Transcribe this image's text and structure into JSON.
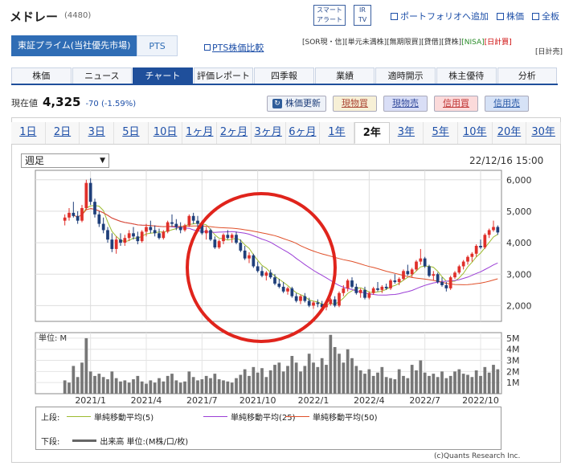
{
  "header": {
    "company_name": "メドレー",
    "code": "(4480)",
    "smart_alert": "スマート\nアラート",
    "ir_tv": "IR\nTV",
    "links": [
      "ポートフォリオへ追加",
      "株価",
      "全板"
    ]
  },
  "market": {
    "main_label": "東証プライム(当社優先市場)",
    "pts_label": "PTS",
    "pts_compare": "PTS株価比較",
    "tags_line1": [
      "[SOR現・信]",
      "[単元未満株]",
      "[無期限買]",
      "[貸借]",
      "[貸株]",
      "[NISA]",
      "[日計買]"
    ],
    "tags_line2": [
      "[日計売]"
    ]
  },
  "nav": {
    "tabs": [
      "株価",
      "ニュース",
      "チャート",
      "評価レポート",
      "四季報",
      "業績",
      "適時開示",
      "株主優待",
      "分析"
    ],
    "active_index": 2
  },
  "price": {
    "label": "現在値",
    "value": "4,325",
    "change": "-70 (-1.59%)"
  },
  "buttons": {
    "update": "株価更新",
    "buy": "現物買",
    "sell": "現物売",
    "credit_buy": "信用買",
    "credit_sell": "信用売"
  },
  "periods": {
    "items": [
      "1日",
      "2日",
      "3日",
      "5日",
      "10日",
      "1ヶ月",
      "2ヶ月",
      "3ヶ月",
      "6ヶ月",
      "1年",
      "2年",
      "3年",
      "5年",
      "10年",
      "20年",
      "30年"
    ],
    "active_index": 10
  },
  "chart_controls": {
    "interval_select": "週足",
    "timestamp": "22/12/16 15:00"
  },
  "chart_data": {
    "type": "candlestick",
    "x_ticks": [
      "2021/1",
      "2021/4",
      "2021/7",
      "2021/10",
      "2022/1",
      "2022/4",
      "2022/7",
      "2022/10"
    ],
    "price_axis": {
      "ticks": [
        "6,000",
        "5,000",
        "4,000",
        "3,000",
        "2,000"
      ],
      "range": [
        1500,
        6300
      ]
    },
    "volume_axis": {
      "unit_label": "単位: M",
      "ticks": [
        "5M",
        "4M",
        "3M",
        "2M",
        "1M"
      ],
      "range": [
        0,
        5.5
      ]
    },
    "weeks": 102,
    "ohlc": [
      [
        4700,
        4900,
        4550,
        4800
      ],
      [
        4800,
        5100,
        4700,
        4950
      ],
      [
        4950,
        5300,
        4800,
        4850
      ],
      [
        4850,
        5000,
        4600,
        4700
      ],
      [
        4700,
        5200,
        4650,
        5100
      ],
      [
        5100,
        6000,
        5050,
        5900
      ],
      [
        5900,
        6050,
        5200,
        5300
      ],
      [
        5300,
        5400,
        4800,
        4900
      ],
      [
        4900,
        5000,
        4500,
        4600
      ],
      [
        4600,
        4800,
        4300,
        4400
      ],
      [
        4400,
        4500,
        4000,
        4100
      ],
      [
        4100,
        4300,
        3700,
        3800
      ],
      [
        3800,
        4200,
        3650,
        4100
      ],
      [
        4100,
        4300,
        3900,
        4000
      ],
      [
        4000,
        4250,
        3900,
        4150
      ],
      [
        4150,
        4400,
        4050,
        4300
      ],
      [
        4300,
        4500,
        4100,
        4200
      ],
      [
        4200,
        4350,
        3950,
        4050
      ],
      [
        4050,
        4400,
        4000,
        4350
      ],
      [
        4350,
        4600,
        4200,
        4500
      ],
      [
        4500,
        4700,
        4300,
        4400
      ],
      [
        4400,
        4550,
        4200,
        4300
      ],
      [
        4300,
        4450,
        4100,
        4150
      ],
      [
        4150,
        4400,
        4100,
        4350
      ],
      [
        4350,
        4700,
        4300,
        4650
      ],
      [
        4650,
        4900,
        4500,
        4600
      ],
      [
        4600,
        4750,
        4400,
        4500
      ],
      [
        4500,
        4650,
        4300,
        4400
      ],
      [
        4400,
        4600,
        4350,
        4550
      ],
      [
        4550,
        4900,
        4500,
        4850
      ],
      [
        4850,
        4950,
        4600,
        4700
      ],
      [
        4700,
        4850,
        4500,
        4600
      ],
      [
        4600,
        4700,
        4250,
        4300
      ],
      [
        4300,
        4500,
        4100,
        4400
      ],
      [
        4400,
        4450,
        4050,
        4100
      ],
      [
        4100,
        4200,
        3800,
        3850
      ],
      [
        3850,
        4100,
        3800,
        4050
      ],
      [
        4050,
        4300,
        3950,
        4250
      ],
      [
        4250,
        4400,
        4100,
        4150
      ],
      [
        4150,
        4300,
        4000,
        4250
      ],
      [
        4250,
        4350,
        3950,
        4000
      ],
      [
        4000,
        4100,
        3700,
        3750
      ],
      [
        3750,
        3900,
        3450,
        3500
      ],
      [
        3500,
        3700,
        3350,
        3600
      ],
      [
        3600,
        3650,
        3200,
        3250
      ],
      [
        3250,
        3400,
        3050,
        3100
      ],
      [
        3100,
        3250,
        2900,
        2950
      ],
      [
        2950,
        3100,
        2800,
        3050
      ],
      [
        3050,
        3150,
        2850,
        2900
      ],
      [
        2900,
        3000,
        2650,
        2700
      ],
      [
        2700,
        2850,
        2550,
        2600
      ],
      [
        2600,
        2750,
        2400,
        2450
      ],
      [
        2450,
        2600,
        2350,
        2550
      ],
      [
        2550,
        2600,
        2250,
        2300
      ],
      [
        2300,
        2400,
        2100,
        2150
      ],
      [
        2150,
        2350,
        2050,
        2300
      ],
      [
        2300,
        2400,
        2100,
        2150
      ],
      [
        2150,
        2250,
        1950,
        2000
      ],
      [
        2000,
        2150,
        1900,
        2100
      ],
      [
        2100,
        2200,
        1950,
        2050
      ],
      [
        2050,
        2150,
        1900,
        1950
      ],
      [
        1950,
        2100,
        1850,
        2050
      ],
      [
        2050,
        2250,
        2000,
        2200
      ],
      [
        2200,
        2300,
        1950,
        2000
      ],
      [
        2000,
        2450,
        1950,
        2400
      ],
      [
        2400,
        2650,
        2300,
        2550
      ],
      [
        2550,
        2850,
        2450,
        2800
      ],
      [
        2800,
        2900,
        2550,
        2600
      ],
      [
        2600,
        2700,
        2350,
        2400
      ],
      [
        2400,
        2550,
        2250,
        2500
      ],
      [
        2500,
        2600,
        2200,
        2250
      ],
      [
        2250,
        2450,
        2200,
        2400
      ],
      [
        2400,
        2600,
        2350,
        2550
      ],
      [
        2550,
        2750,
        2450,
        2500
      ],
      [
        2500,
        2650,
        2400,
        2600
      ],
      [
        2600,
        2700,
        2500,
        2550
      ],
      [
        2550,
        2850,
        2500,
        2800
      ],
      [
        2800,
        3000,
        2700,
        2750
      ],
      [
        2750,
        2900,
        2650,
        2850
      ],
      [
        2850,
        3150,
        2800,
        3100
      ],
      [
        3100,
        3300,
        2950,
        3000
      ],
      [
        3000,
        3200,
        2900,
        3150
      ],
      [
        3150,
        3450,
        3100,
        3400
      ],
      [
        3400,
        3800,
        3300,
        3500
      ],
      [
        3500,
        3550,
        3200,
        3250
      ],
      [
        3250,
        3300,
        2900,
        2950
      ],
      [
        2950,
        3100,
        2800,
        3000
      ],
      [
        3000,
        3050,
        2700,
        2750
      ],
      [
        2750,
        2900,
        2600,
        2650
      ],
      [
        2650,
        2750,
        2450,
        2550
      ],
      [
        2550,
        2950,
        2500,
        2900
      ],
      [
        2900,
        3100,
        2850,
        3050
      ],
      [
        3050,
        3300,
        3000,
        3250
      ],
      [
        3250,
        3450,
        3150,
        3400
      ],
      [
        3400,
        3600,
        3300,
        3550
      ],
      [
        3550,
        3700,
        3400,
        3650
      ],
      [
        3650,
        3950,
        3550,
        3900
      ],
      [
        3900,
        4100,
        3800,
        3850
      ],
      [
        3850,
        4300,
        3800,
        4250
      ],
      [
        4250,
        4450,
        4150,
        4400
      ],
      [
        4400,
        4700,
        4350,
        4500
      ],
      [
        4500,
        4550,
        4250,
        4325
      ]
    ],
    "volume": [
      1.2,
      1.0,
      2.5,
      1.5,
      2.8,
      5.0,
      2.0,
      1.6,
      1.8,
      1.5,
      1.3,
      2.0,
      1.4,
      1.1,
      1.2,
      1.0,
      1.3,
      1.6,
      1.1,
      0.9,
      1.2,
      1.0,
      1.4,
      1.1,
      1.6,
      1.8,
      1.2,
      1.0,
      1.1,
      2.0,
      1.5,
      1.2,
      1.3,
      1.6,
      1.4,
      1.8,
      1.3,
      1.2,
      1.1,
      1.0,
      1.4,
      1.7,
      2.2,
      1.6,
      2.4,
      1.9,
      2.3,
      1.5,
      2.1,
      2.6,
      2.8,
      2.0,
      2.5,
      3.4,
      2.8,
      2.0,
      2.5,
      3.6,
      2.8,
      2.4,
      3.2,
      2.6,
      5.3,
      4.2,
      3.6,
      2.8,
      4.0,
      3.2,
      2.5,
      2.1,
      1.8,
      2.2,
      1.6,
      1.9,
      2.4,
      1.5,
      1.4,
      1.3,
      2.2,
      1.6,
      1.4,
      2.6,
      2.1,
      3.0,
      1.9,
      1.6,
      1.8,
      1.5,
      2.0,
      1.4,
      1.6,
      2.0,
      2.2,
      1.8,
      1.7,
      1.5,
      2.1,
      1.6,
      2.4,
      1.9,
      2.6,
      2.2
    ],
    "series": [
      {
        "name": "単純移動平均(5)",
        "color": "#9dbb30"
      },
      {
        "name": "単純移動平均(25)",
        "color": "#9c3fd6"
      },
      {
        "name": "単純移動平均(50)",
        "color": "#e0502a"
      }
    ],
    "legend": {
      "upper_label": "上段:",
      "lower_label": "下段:",
      "volume_label": "出来高 単位:(M株/口/枚)"
    },
    "up_color": "#e0302a",
    "down_color": "#1f3f7a",
    "annotation": "red-circle-around-decline",
    "credit": "(c)Quants Research Inc."
  }
}
